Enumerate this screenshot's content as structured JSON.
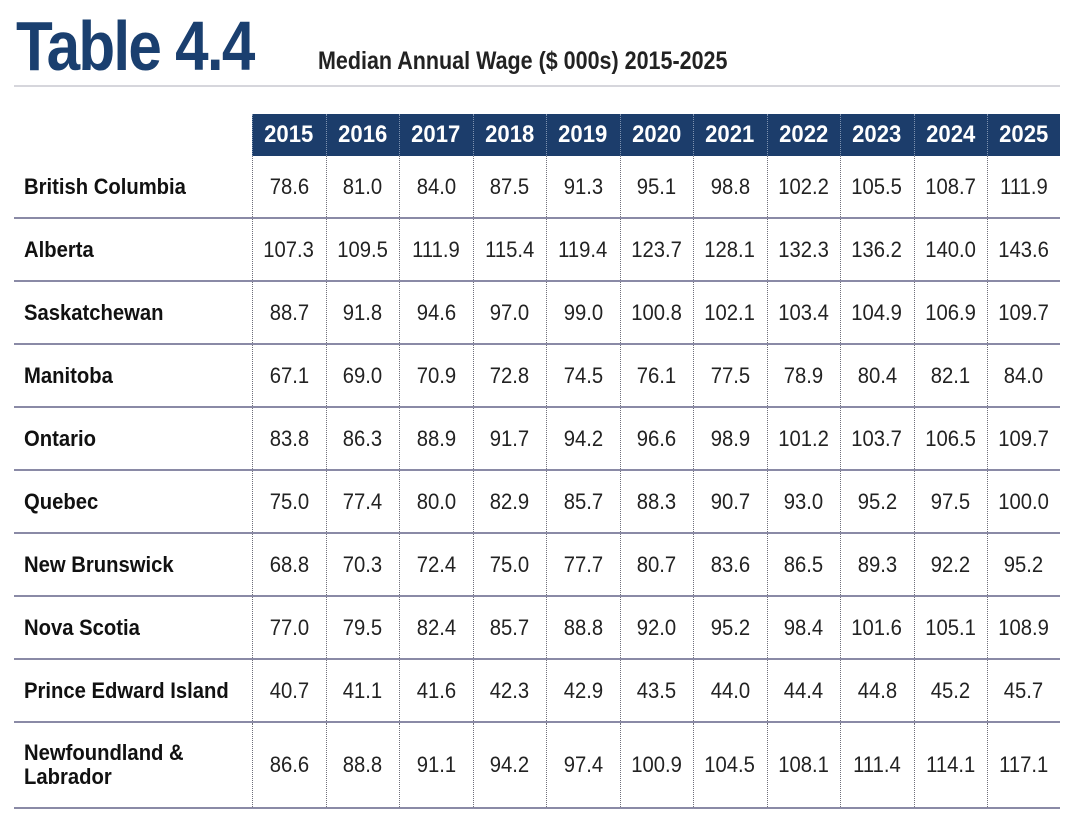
{
  "header": {
    "table_label": "Table 4.4",
    "subtitle": "Median Annual Wage ($ 000s) 2015-2025"
  },
  "table": {
    "years": [
      "2015",
      "2016",
      "2017",
      "2018",
      "2019",
      "2020",
      "2021",
      "2022",
      "2023",
      "2024",
      "2025"
    ],
    "rows": [
      {
        "province": "British Columbia",
        "values": [
          "78.6",
          "81.0",
          "84.0",
          "87.5",
          "91.3",
          "95.1",
          "98.8",
          "102.2",
          "105.5",
          "108.7",
          "111.9"
        ]
      },
      {
        "province": "Alberta",
        "values": [
          "107.3",
          "109.5",
          "111.9",
          "115.4",
          "119.4",
          "123.7",
          "128.1",
          "132.3",
          "136.2",
          "140.0",
          "143.6"
        ]
      },
      {
        "province": "Saskatchewan",
        "values": [
          "88.7",
          "91.8",
          "94.6",
          "97.0",
          "99.0",
          "100.8",
          "102.1",
          "103.4",
          "104.9",
          "106.9",
          "109.7"
        ]
      },
      {
        "province": "Manitoba",
        "values": [
          "67.1",
          "69.0",
          "70.9",
          "72.8",
          "74.5",
          "76.1",
          "77.5",
          "78.9",
          "80.4",
          "82.1",
          "84.0"
        ]
      },
      {
        "province": "Ontario",
        "values": [
          "83.8",
          "86.3",
          "88.9",
          "91.7",
          "94.2",
          "96.6",
          "98.9",
          "101.2",
          "103.7",
          "106.5",
          "109.7"
        ]
      },
      {
        "province": "Quebec",
        "values": [
          "75.0",
          "77.4",
          "80.0",
          "82.9",
          "85.7",
          "88.3",
          "90.7",
          "93.0",
          "95.2",
          "97.5",
          "100.0"
        ]
      },
      {
        "province": "New Brunswick",
        "values": [
          "68.8",
          "70.3",
          "72.4",
          "75.0",
          "77.7",
          "80.7",
          "83.6",
          "86.5",
          "89.3",
          "92.2",
          "95.2"
        ]
      },
      {
        "province": "Nova Scotia",
        "values": [
          "77.0",
          "79.5",
          "82.4",
          "85.7",
          "88.8",
          "92.0",
          "95.2",
          "98.4",
          "101.6",
          "105.1",
          "108.9"
        ]
      },
      {
        "province": "Prince Edward Island",
        "values": [
          "40.7",
          "41.1",
          "41.6",
          "42.3",
          "42.9",
          "43.5",
          "44.0",
          "44.4",
          "44.8",
          "45.2",
          "45.7"
        ]
      },
      {
        "province": "Newfoundland & Labrador",
        "values": [
          "86.6",
          "88.8",
          "91.1",
          "94.2",
          "97.4",
          "100.9",
          "104.5",
          "108.1",
          "111.4",
          "114.1",
          "117.1"
        ]
      }
    ]
  }
}
